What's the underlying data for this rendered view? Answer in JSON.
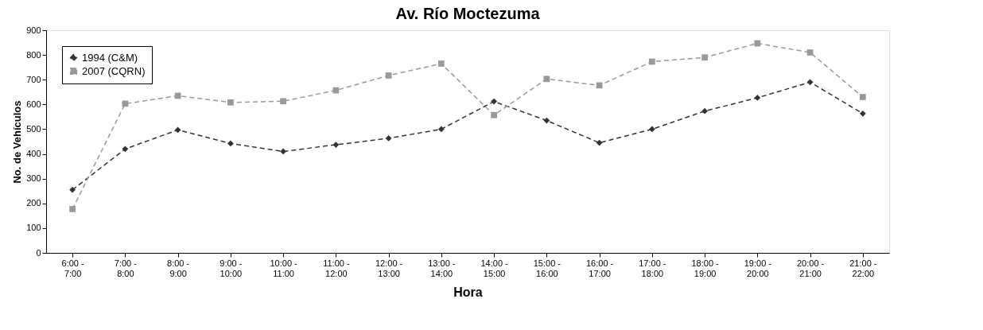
{
  "chart_data": {
    "type": "line",
    "title": "Av. Río Moctezuma",
    "xlabel": "Hora",
    "ylabel": "No. de Vehículos",
    "categories": [
      "6:00 - 7:00",
      "7:00 - 8:00",
      "8:00 - 9:00",
      "9:00 - 10:00",
      "10:00 - 11:00",
      "11:00 - 12:00",
      "12:00 - 13:00",
      "13:00 - 14:00",
      "14:00 - 15:00",
      "15:00 - 16:00",
      "16:00 - 17:00",
      "17:00 - 18:00",
      "18:00 - 19:00",
      "19:00 - 20:00",
      "20:00 - 21:00",
      "21:00 - 22:00"
    ],
    "series": [
      {
        "name": "1994 (C&M)",
        "color": "#333333",
        "marker": "diamond",
        "values": [
          255,
          420,
          497,
          442,
          410,
          437,
          463,
          500,
          612,
          535,
          445,
          500,
          573,
          627,
          690,
          563
        ]
      },
      {
        "name": "2007 (CQRN)",
        "color": "#999999",
        "marker": "square",
        "values": [
          177,
          603,
          635,
          608,
          613,
          657,
          717,
          765,
          557,
          703,
          677,
          773,
          790,
          847,
          810,
          630
        ]
      }
    ],
    "ylim": [
      0,
      900
    ],
    "yticks": [
      0,
      100,
      200,
      300,
      400,
      500,
      600,
      700,
      800,
      900
    ],
    "grid": false,
    "legend": "top left",
    "line_style": "dashed"
  }
}
